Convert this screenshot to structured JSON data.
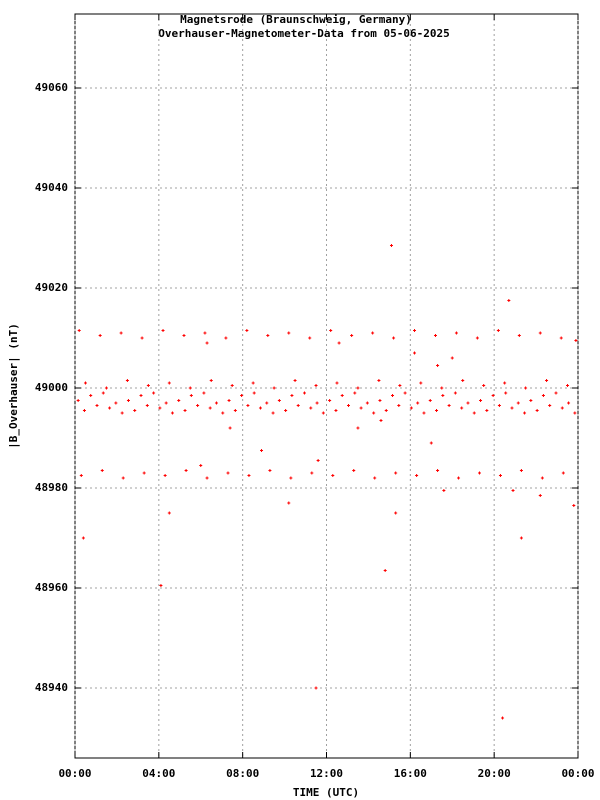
{
  "chart_data": {
    "type": "scatter",
    "title": "Magnetsrode (Braunschweig, Germany)",
    "subtitle": "Overhauser-Magnetometer-Data from 05-06-2025",
    "x_label": "TIME (UTC)",
    "y_label": "|B_Overhauser| (nT)",
    "color": "#ff0000",
    "grid": true,
    "xlim": [
      0,
      24
    ],
    "xticks": [
      {
        "value": 0,
        "label": "00:00"
      },
      {
        "value": 4,
        "label": "04:00"
      },
      {
        "value": 8,
        "label": "08:00"
      },
      {
        "value": 12,
        "label": "12:00"
      },
      {
        "value": 16,
        "label": "16:00"
      },
      {
        "value": 20,
        "label": "20:00"
      },
      {
        "value": 24,
        "label": "00:00"
      }
    ],
    "ylim": [
      48926,
      49074.8
    ],
    "yticks": [
      48940,
      48960,
      48980,
      49000,
      49020,
      49040,
      49060
    ],
    "x": [
      0.15,
      0.45,
      0.75,
      1.05,
      1.35,
      1.65,
      1.95,
      2.25,
      2.55,
      2.85,
      3.15,
      3.45,
      3.75,
      4.05,
      4.35,
      4.65,
      4.95,
      5.25,
      5.55,
      5.85,
      6.15,
      6.45,
      6.75,
      7.05,
      7.35,
      7.65,
      7.95,
      8.25,
      8.55,
      8.85,
      9.15,
      9.45,
      9.75,
      10.05,
      10.35,
      10.65,
      10.95,
      11.25,
      11.55,
      11.85,
      12.15,
      12.45,
      12.75,
      13.05,
      13.35,
      13.65,
      13.95,
      14.25,
      14.55,
      14.85,
      15.15,
      15.45,
      15.75,
      16.05,
      16.35,
      16.65,
      16.95,
      17.25,
      17.55,
      17.85,
      18.15,
      18.45,
      18.75,
      19.05,
      19.35,
      19.65,
      19.95,
      20.25,
      20.55,
      20.85,
      21.15,
      21.45,
      21.75,
      22.05,
      22.35,
      22.65,
      22.95,
      23.25,
      23.55,
      23.85,
      0.5,
      1.5,
      2.5,
      3.5,
      4.5,
      5.5,
      6.5,
      7.5,
      8.5,
      9.5,
      10.5,
      11.5,
      12.5,
      13.5,
      14.5,
      15.5,
      16.5,
      17.5,
      18.5,
      19.5,
      20.5,
      21.5,
      22.5,
      23.5,
      0.2,
      1.2,
      2.2,
      3.2,
      4.2,
      5.2,
      6.2,
      7.2,
      8.2,
      9.2,
      10.2,
      11.2,
      12.2,
      13.2,
      14.2,
      15.2,
      16.2,
      17.2,
      18.2,
      19.2,
      20.2,
      21.2,
      22.2,
      23.2,
      0.3,
      1.3,
      2.3,
      3.3,
      4.3,
      5.3,
      6.3,
      7.3,
      8.3,
      9.3,
      10.3,
      11.3,
      12.3,
      13.3,
      14.3,
      15.3,
      16.3,
      17.3,
      18.3,
      19.3,
      20.3,
      21.3,
      22.3,
      23.3,
      0.4,
      4.1,
      4.5,
      6.3,
      6.0,
      7.4,
      8.9,
      10.2,
      11.5,
      11.6,
      12.6,
      13.5,
      14.6,
      14.8,
      15.1,
      15.3,
      16.2,
      17.0,
      17.3,
      17.6,
      18.0,
      20.4,
      20.7,
      20.9,
      21.3,
      22.2,
      23.8,
      23.9
    ],
    "values": [
      48997.5,
      48995.5,
      48998.5,
      48996.5,
      48999,
      48996,
      48997,
      48995,
      48997.5,
      48995.5,
      48998.5,
      48996.5,
      48999,
      48996,
      48997,
      48995,
      48997.5,
      48995.5,
      48998.5,
      48996.5,
      48999,
      48996,
      48997,
      48995,
      48997.5,
      48995.5,
      48998.5,
      48996.5,
      48999,
      48996,
      48997,
      48995,
      48997.5,
      48995.5,
      48998.5,
      48996.5,
      48999,
      48996,
      48997,
      48995,
      48997.5,
      48995.5,
      48998.5,
      48996.5,
      48999,
      48996,
      48997,
      48995,
      48997.5,
      48995.5,
      48998.5,
      48996.5,
      48999,
      48996,
      48997,
      48995,
      48997.5,
      48995.5,
      48998.5,
      48996.5,
      48999,
      48996,
      48997,
      48995,
      48997.5,
      48995.5,
      48998.5,
      48996.5,
      48999,
      48996,
      48997,
      48995,
      48997.5,
      48995.5,
      48998.5,
      48996.5,
      48999,
      48996,
      48997,
      48995,
      49001,
      49000,
      49001.5,
      49000.5,
      49001,
      49000,
      49001.5,
      49000.5,
      49001,
      49000,
      49001.5,
      49000.5,
      49001,
      49000,
      49001.5,
      49000.5,
      49001,
      49000,
      49001.5,
      49000.5,
      49001,
      49000,
      49001.5,
      49000.5,
      49011.5,
      49010.5,
      49011,
      49010,
      49011.5,
      49010.5,
      49011,
      49010,
      49011.5,
      49010.5,
      49011,
      49010,
      49011.5,
      49010.5,
      49011,
      49010,
      49011.5,
      49010.5,
      49011,
      49010,
      49011.5,
      49010.5,
      49011,
      49010,
      48982.5,
      48983.5,
      48982,
      48983,
      48982.5,
      48983.5,
      48982,
      48983,
      48982.5,
      48983.5,
      48982,
      48983,
      48982.5,
      48983.5,
      48982,
      48983,
      48982.5,
      48983.5,
      48982,
      48983,
      48982.5,
      48983.5,
      48982,
      48983,
      48970,
      48960.5,
      48975,
      49009,
      48984.5,
      48992,
      48987.5,
      48977,
      48940,
      48985.5,
      49009,
      48992,
      48993.5,
      48963.5,
      49028.5,
      48975,
      49007,
      48989,
      49004.5,
      48979.5,
      49006,
      48934,
      49017.5,
      48979.5,
      48970,
      48978.5,
      48976.5,
      49009.5
    ]
  }
}
